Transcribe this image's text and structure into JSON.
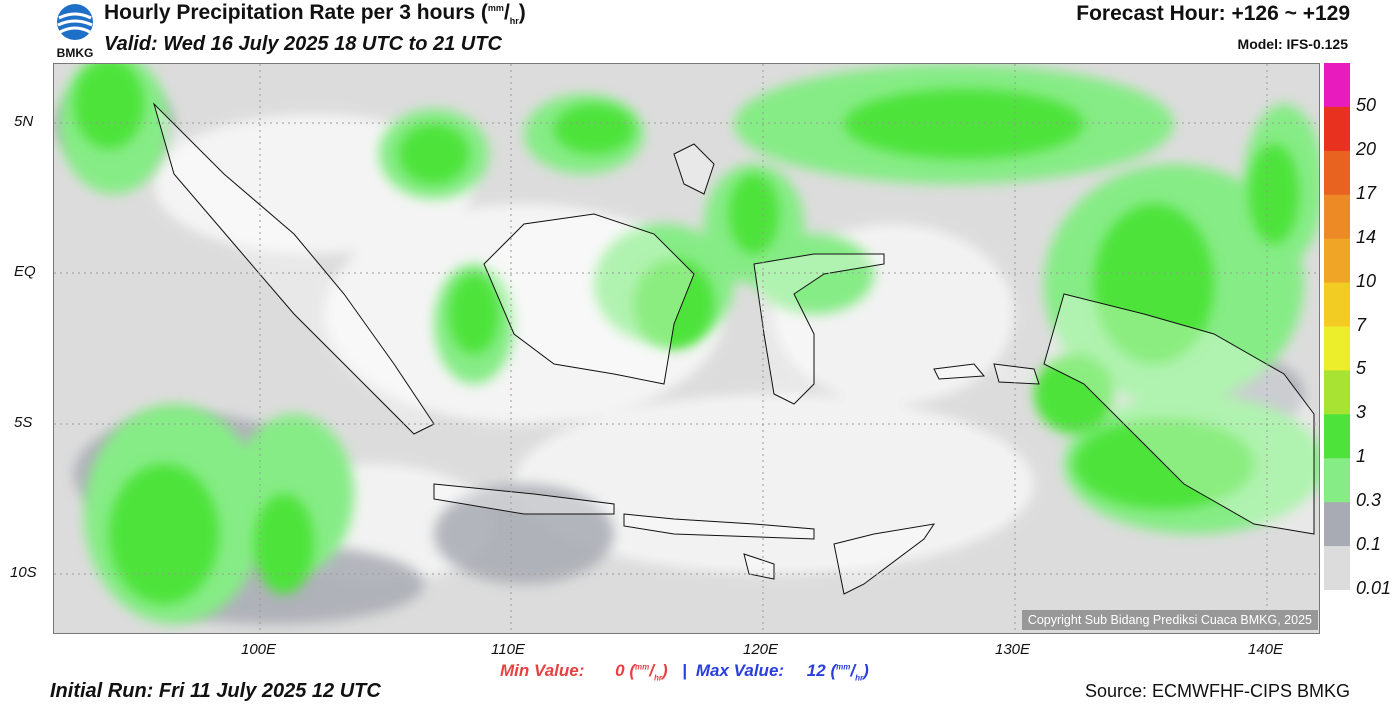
{
  "header": {
    "logo_text": "BMKG",
    "title": "Hourly Precipitation Rate per 3 hours",
    "title_unit_num": "mm",
    "title_unit_den": "hr",
    "valid": "Valid: Wed 16 July 2025 18 UTC to 21 UTC",
    "forecast_hour": "Forecast Hour: +126 ~ +129",
    "model": "Model: IFS-0.125"
  },
  "map": {
    "lat_labels": [
      "5N",
      "EQ",
      "5S",
      "10S"
    ],
    "lon_labels": [
      "100E",
      "110E",
      "120E",
      "130E",
      "140E"
    ],
    "copyright": "Copyright Sub Bidang Prediksi Cuaca BMKG, 2025"
  },
  "stats": {
    "min_label": "Min Value:",
    "min_value": "0",
    "max_label": "Max Value:",
    "max_value": "12",
    "separator": "|",
    "unit_num": "mm",
    "unit_den": "hr"
  },
  "footer": {
    "initial_run": "Initial Run: Fri 11 July 2025 12 UTC",
    "source": "Source: ECMWFHF-CIPS BMKG"
  },
  "colorbar": {
    "labels": [
      "50",
      "20",
      "17",
      "14",
      "10",
      "7",
      "5",
      "3",
      "1",
      "0.3",
      "0.1",
      "0.01"
    ],
    "colors": [
      "#e81bbf",
      "#e8311f",
      "#e8631f",
      "#ee8a26",
      "#f0a526",
      "#f2cc23",
      "#ecee2b",
      "#a8e232",
      "#4ee33a",
      "#86ec86",
      "#a8abb3",
      "#dcdcdc"
    ]
  }
}
